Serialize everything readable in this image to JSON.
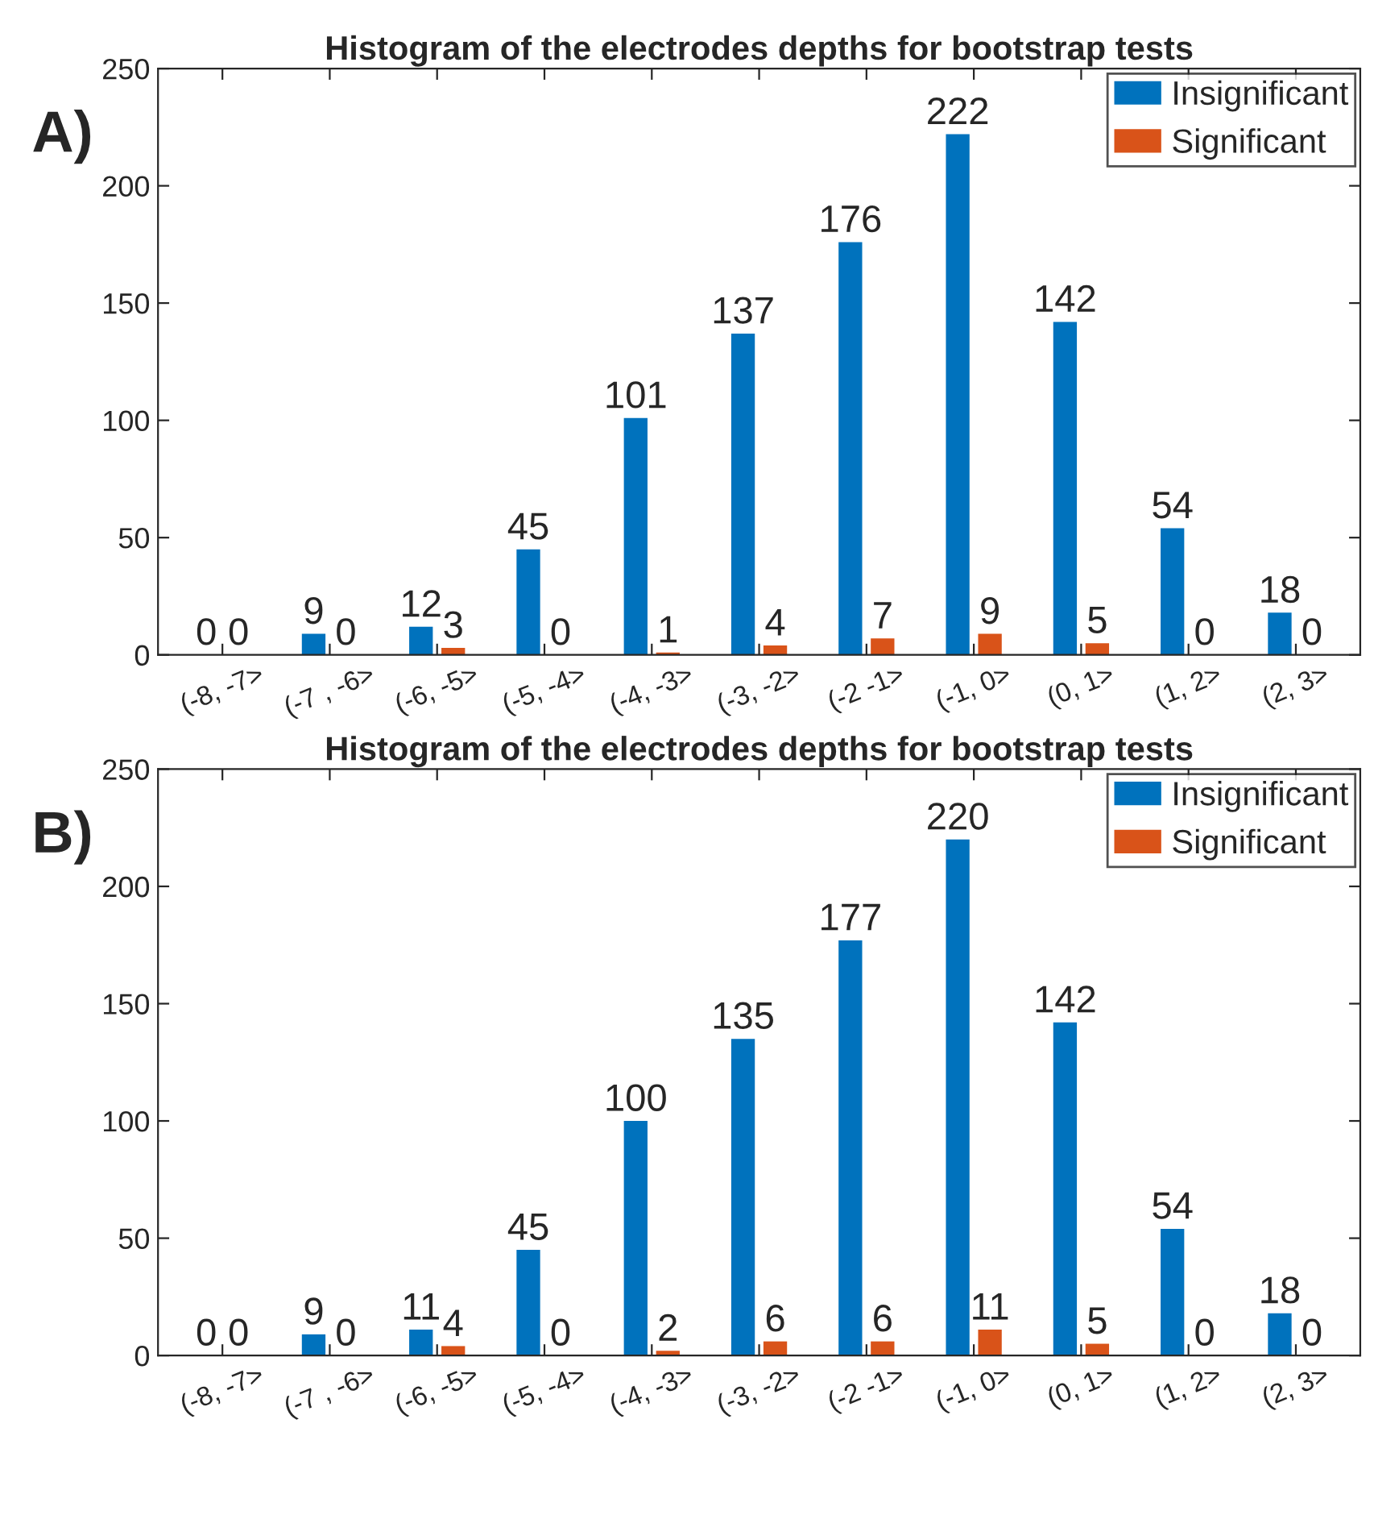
{
  "chart_data": [
    {
      "type": "bar",
      "title": "Histogram of the electrodes depths for bootstrap tests",
      "annotations": [
        "A)"
      ],
      "categories": [
        "(-8, -7>",
        "(-7 , -6>",
        "(-6, -5>",
        "(-5, -4>",
        "(-4, -3>",
        "(-3, -2>",
        "(-2 -1>",
        "(-1, 0>",
        "(0, 1>",
        "(1, 2>",
        "(2, 3>"
      ],
      "series": [
        {
          "name": "Insignificant",
          "color": "#0072bd",
          "values": [
            0,
            9,
            12,
            45,
            101,
            137,
            176,
            222,
            142,
            54,
            18
          ]
        },
        {
          "name": "Significant",
          "color": "#d95319",
          "values": [
            0,
            0,
            3,
            0,
            1,
            4,
            7,
            9,
            5,
            0,
            0
          ]
        }
      ],
      "ylim": [
        0,
        250
      ],
      "yticks": [
        0,
        50,
        100,
        150,
        200,
        250
      ],
      "data_labels": true,
      "legend": "top right",
      "grid": false
    },
    {
      "type": "bar",
      "title": "Histogram of the electrodes depths for bootstrap tests",
      "annotations": [
        "B)"
      ],
      "categories": [
        "(-8, -7>",
        "(-7 , -6>",
        "(-6, -5>",
        "(-5, -4>",
        "(-4, -3>",
        "(-3, -2>",
        "(-2 -1>",
        "(-1, 0>",
        "(0, 1>",
        "(1, 2>",
        "(2, 3>"
      ],
      "series": [
        {
          "name": "Insignificant",
          "color": "#0072bd",
          "values": [
            0,
            9,
            11,
            45,
            100,
            135,
            177,
            220,
            142,
            54,
            18
          ]
        },
        {
          "name": "Significant",
          "color": "#d95319",
          "values": [
            0,
            0,
            4,
            0,
            2,
            6,
            6,
            11,
            5,
            0,
            0
          ]
        }
      ],
      "ylim": [
        0,
        250
      ],
      "yticks": [
        0,
        50,
        100,
        150,
        200,
        250
      ],
      "data_labels": true,
      "legend": "top right",
      "grid": false
    }
  ]
}
